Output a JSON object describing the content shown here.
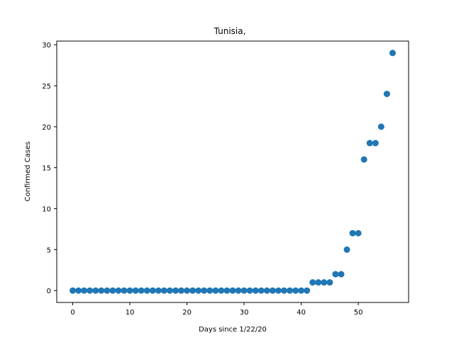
{
  "chart_data": {
    "type": "scatter",
    "title": "Tunisia,",
    "xlabel": "Days since 1/22/20",
    "ylabel": "Confirmed Cases",
    "xlim": [
      -2.8,
      58.8
    ],
    "ylim": [
      -1.45,
      30.45
    ],
    "xticks": [
      0,
      10,
      20,
      30,
      40,
      50
    ],
    "yticks": [
      0,
      5,
      10,
      15,
      20,
      25,
      30
    ],
    "grid": false,
    "colors": {
      "points": "#1f77b4",
      "axes": "#000000",
      "background": "#ffffff"
    },
    "series": [
      {
        "x": [
          0,
          1,
          2,
          3,
          4,
          5,
          6,
          7,
          8,
          9,
          10,
          11,
          12,
          13,
          14,
          15,
          16,
          17,
          18,
          19,
          20,
          21,
          22,
          23,
          24,
          25,
          26,
          27,
          28,
          29,
          30,
          31,
          32,
          33,
          34,
          35,
          36,
          37,
          38,
          39,
          40,
          41,
          42,
          43,
          44,
          45,
          46,
          47,
          48,
          49,
          50,
          51,
          52,
          53,
          54,
          55,
          56
        ],
        "y": [
          0,
          0,
          0,
          0,
          0,
          0,
          0,
          0,
          0,
          0,
          0,
          0,
          0,
          0,
          0,
          0,
          0,
          0,
          0,
          0,
          0,
          0,
          0,
          0,
          0,
          0,
          0,
          0,
          0,
          0,
          0,
          0,
          0,
          0,
          0,
          0,
          0,
          0,
          0,
          0,
          0,
          0,
          1,
          1,
          1,
          1,
          2,
          2,
          5,
          7,
          7,
          16,
          18,
          18,
          20,
          24,
          29
        ]
      }
    ]
  }
}
